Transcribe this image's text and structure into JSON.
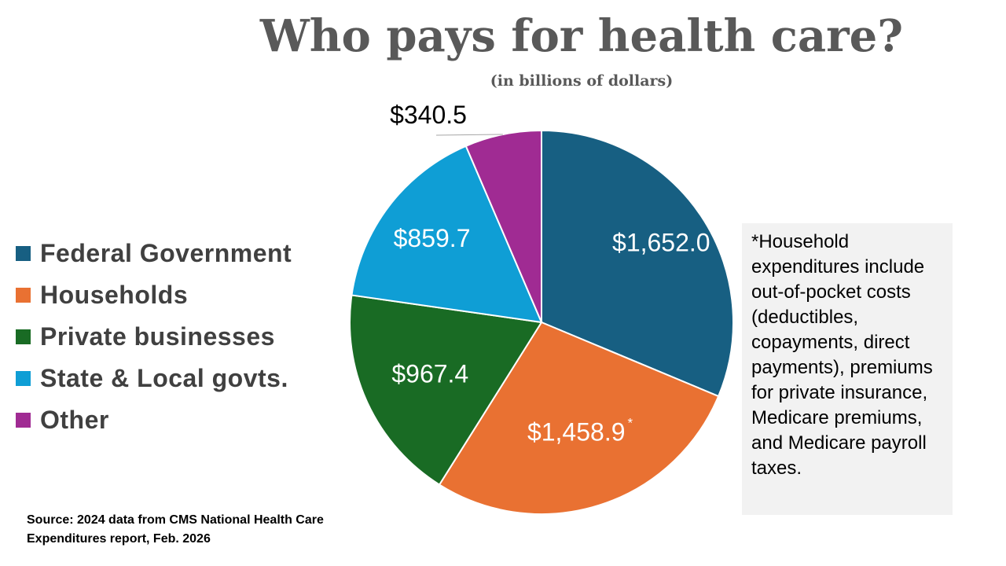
{
  "chart_data": {
    "type": "pie",
    "title": "Who pays for health care?",
    "subtitle": "(in billions of dollars)",
    "categories": [
      "Federal Government",
      "Households",
      "Private businesses",
      "State & Local govts.",
      "Other"
    ],
    "values": [
      1652.0,
      1458.9,
      967.4,
      859.7,
      340.5
    ],
    "value_labels": [
      "$1,652.0",
      "$1,458.9",
      "$967.4",
      "$859.7",
      "$340.5"
    ],
    "colors": [
      "#175f82",
      "#e97132",
      "#196b24",
      "#0f9ed5",
      "#a02b93"
    ],
    "legend_position": "left",
    "annotations": {
      "households_marker": "*",
      "note": "*Household expenditures include out-of-pocket costs (deductibles, copayments, direct payments), premiums for private insurance, Medicare premiums, and Medicare payroll taxes."
    },
    "source": "Source: 2024 data from CMS National Health Care Expenditures report, Feb. 2026"
  }
}
